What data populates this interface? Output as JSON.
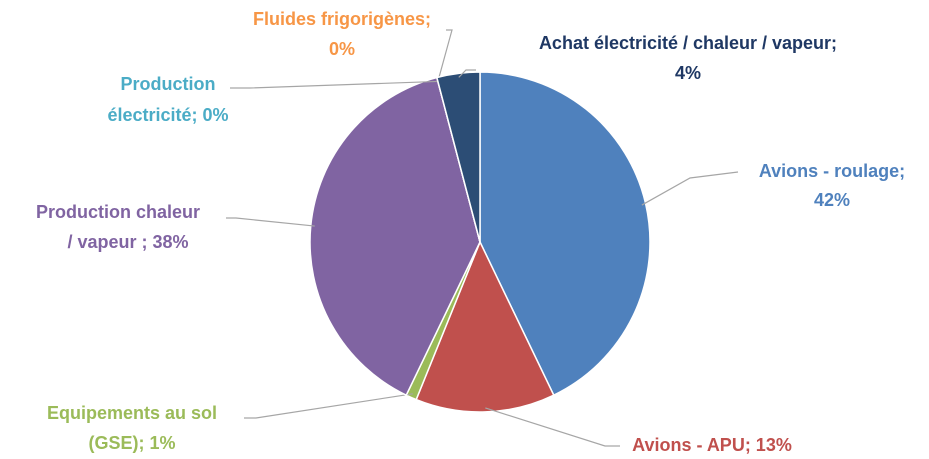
{
  "chart_data": {
    "type": "pie",
    "values": [
      42,
      13,
      1,
      38,
      0,
      0,
      4
    ],
    "value_labels": [
      [
        "Avions - roulage;",
        "42%"
      ],
      [
        "Avions - APU; 13%"
      ],
      [
        "Equipements au sol",
        "(GSE); 1%"
      ],
      [
        "Production chaleur",
        "/ vapeur ; 38%"
      ],
      [
        "Production",
        "électricité; 0%"
      ],
      [
        "Fluides frigorigènes;",
        "0%"
      ],
      [
        "Achat électricité / chaleur / vapeur;",
        "4%"
      ]
    ],
    "colors": [
      "#4f81bd",
      "#c0504d",
      "#9bbb59",
      "#8064a2",
      "#4bacc6",
      "#f79646",
      "#2c4d75"
    ],
    "label_colors": [
      "#4f81bd",
      "#c0504d",
      "#9bbb59",
      "#8064a2",
      "#4bacc6",
      "#f79646",
      "#1f3864"
    ]
  }
}
